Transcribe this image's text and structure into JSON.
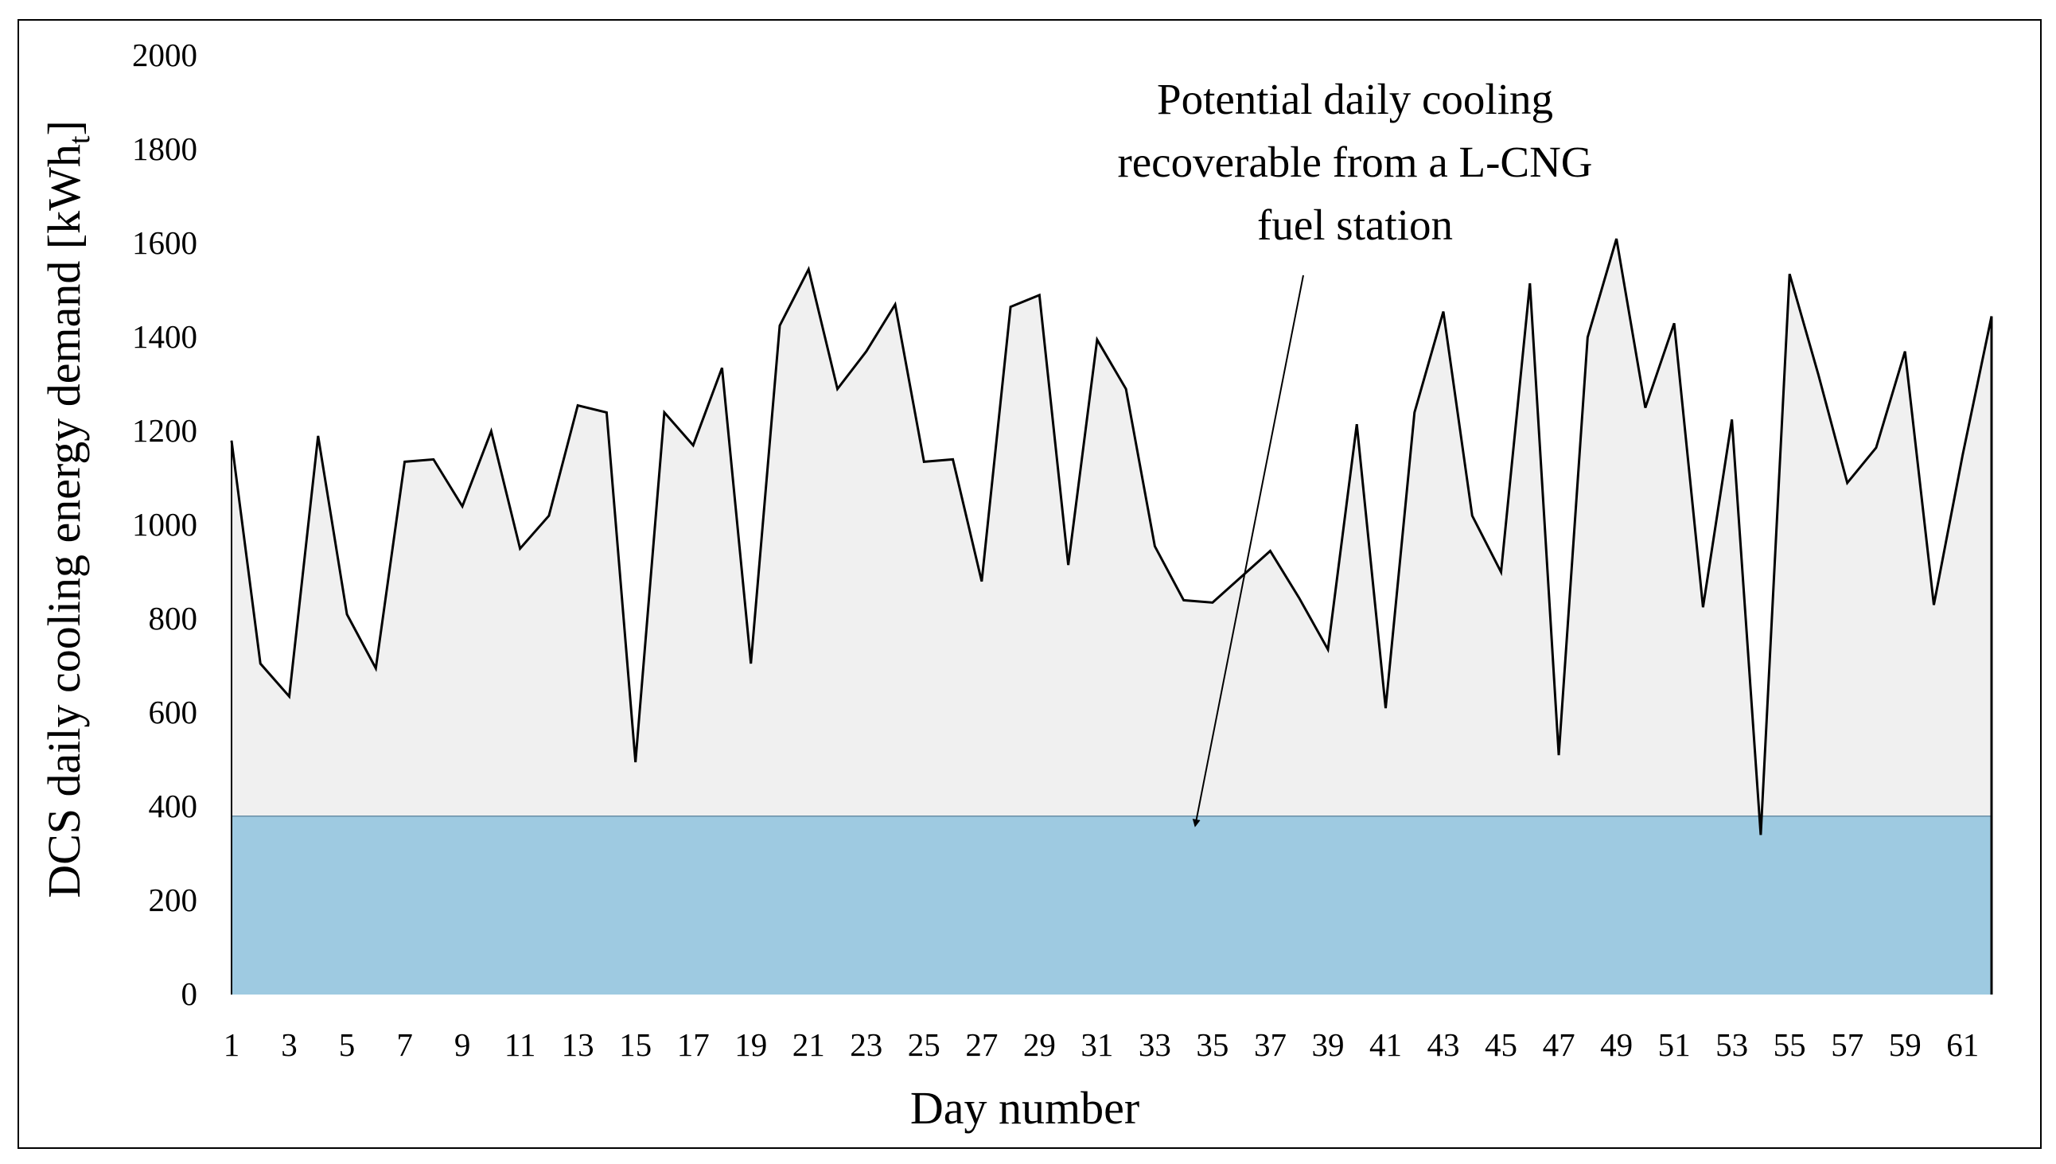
{
  "chart_data": {
    "type": "area",
    "title": "",
    "xlabel": "Day number",
    "ylabel": "DCS daily cooling energy demand [kWht]",
    "ylabel_main": "DCS daily cooling energy demand [kWh",
    "ylabel_sub": "t",
    "ylabel_end": "]",
    "ylim": [
      0,
      2000
    ],
    "yticks": [
      0,
      200,
      400,
      600,
      800,
      1000,
      1200,
      1400,
      1600,
      1800,
      2000
    ],
    "xlim": [
      1,
      62
    ],
    "xticks": [
      1,
      3,
      5,
      7,
      9,
      11,
      13,
      15,
      17,
      19,
      21,
      23,
      25,
      27,
      29,
      31,
      33,
      35,
      37,
      39,
      41,
      43,
      45,
      47,
      49,
      51,
      53,
      55,
      57,
      59,
      61
    ],
    "grid": false,
    "legend": "none",
    "series": [
      {
        "role": "demand",
        "x": [
          1,
          2,
          3,
          4,
          5,
          6,
          7,
          8,
          9,
          10,
          11,
          12,
          13,
          14,
          15,
          16,
          17,
          18,
          19,
          20,
          21,
          22,
          23,
          24,
          25,
          26,
          27,
          28,
          29,
          30,
          31,
          32,
          33,
          34,
          35,
          36,
          37,
          38,
          39,
          40,
          41,
          42,
          43,
          44,
          45,
          46,
          47,
          48,
          49,
          50,
          51,
          52,
          53,
          54,
          55,
          56,
          57,
          58,
          59,
          60,
          61,
          62
        ],
        "values": [
          1180,
          705,
          635,
          1190,
          810,
          695,
          1135,
          1140,
          1040,
          1200,
          950,
          1020,
          1255,
          1240,
          495,
          1240,
          1170,
          1335,
          705,
          1425,
          1545,
          1290,
          1370,
          1470,
          1135,
          1140,
          880,
          1465,
          1490,
          915,
          1395,
          1290,
          955,
          840,
          835,
          890,
          945,
          845,
          735,
          1215,
          610,
          1240,
          1455,
          1020,
          900,
          1515,
          510,
          1400,
          1610,
          1250,
          1430,
          825,
          1225,
          340,
          1535,
          1320,
          1090,
          1165,
          1370,
          830,
          1150,
          1445
        ],
        "color": "#000000",
        "fill": "#f0f0f0"
      },
      {
        "role": "recoverable-cooling",
        "x": [
          1,
          62
        ],
        "values": [
          380,
          380
        ],
        "fill": "#9ecae1"
      }
    ],
    "annotations": [
      {
        "lines": [
          "Potential daily cooling",
          "recoverable  from a L-CNG",
          "fuel station"
        ],
        "arrow_target": {
          "x": 34.4,
          "y": 380
        }
      }
    ]
  }
}
